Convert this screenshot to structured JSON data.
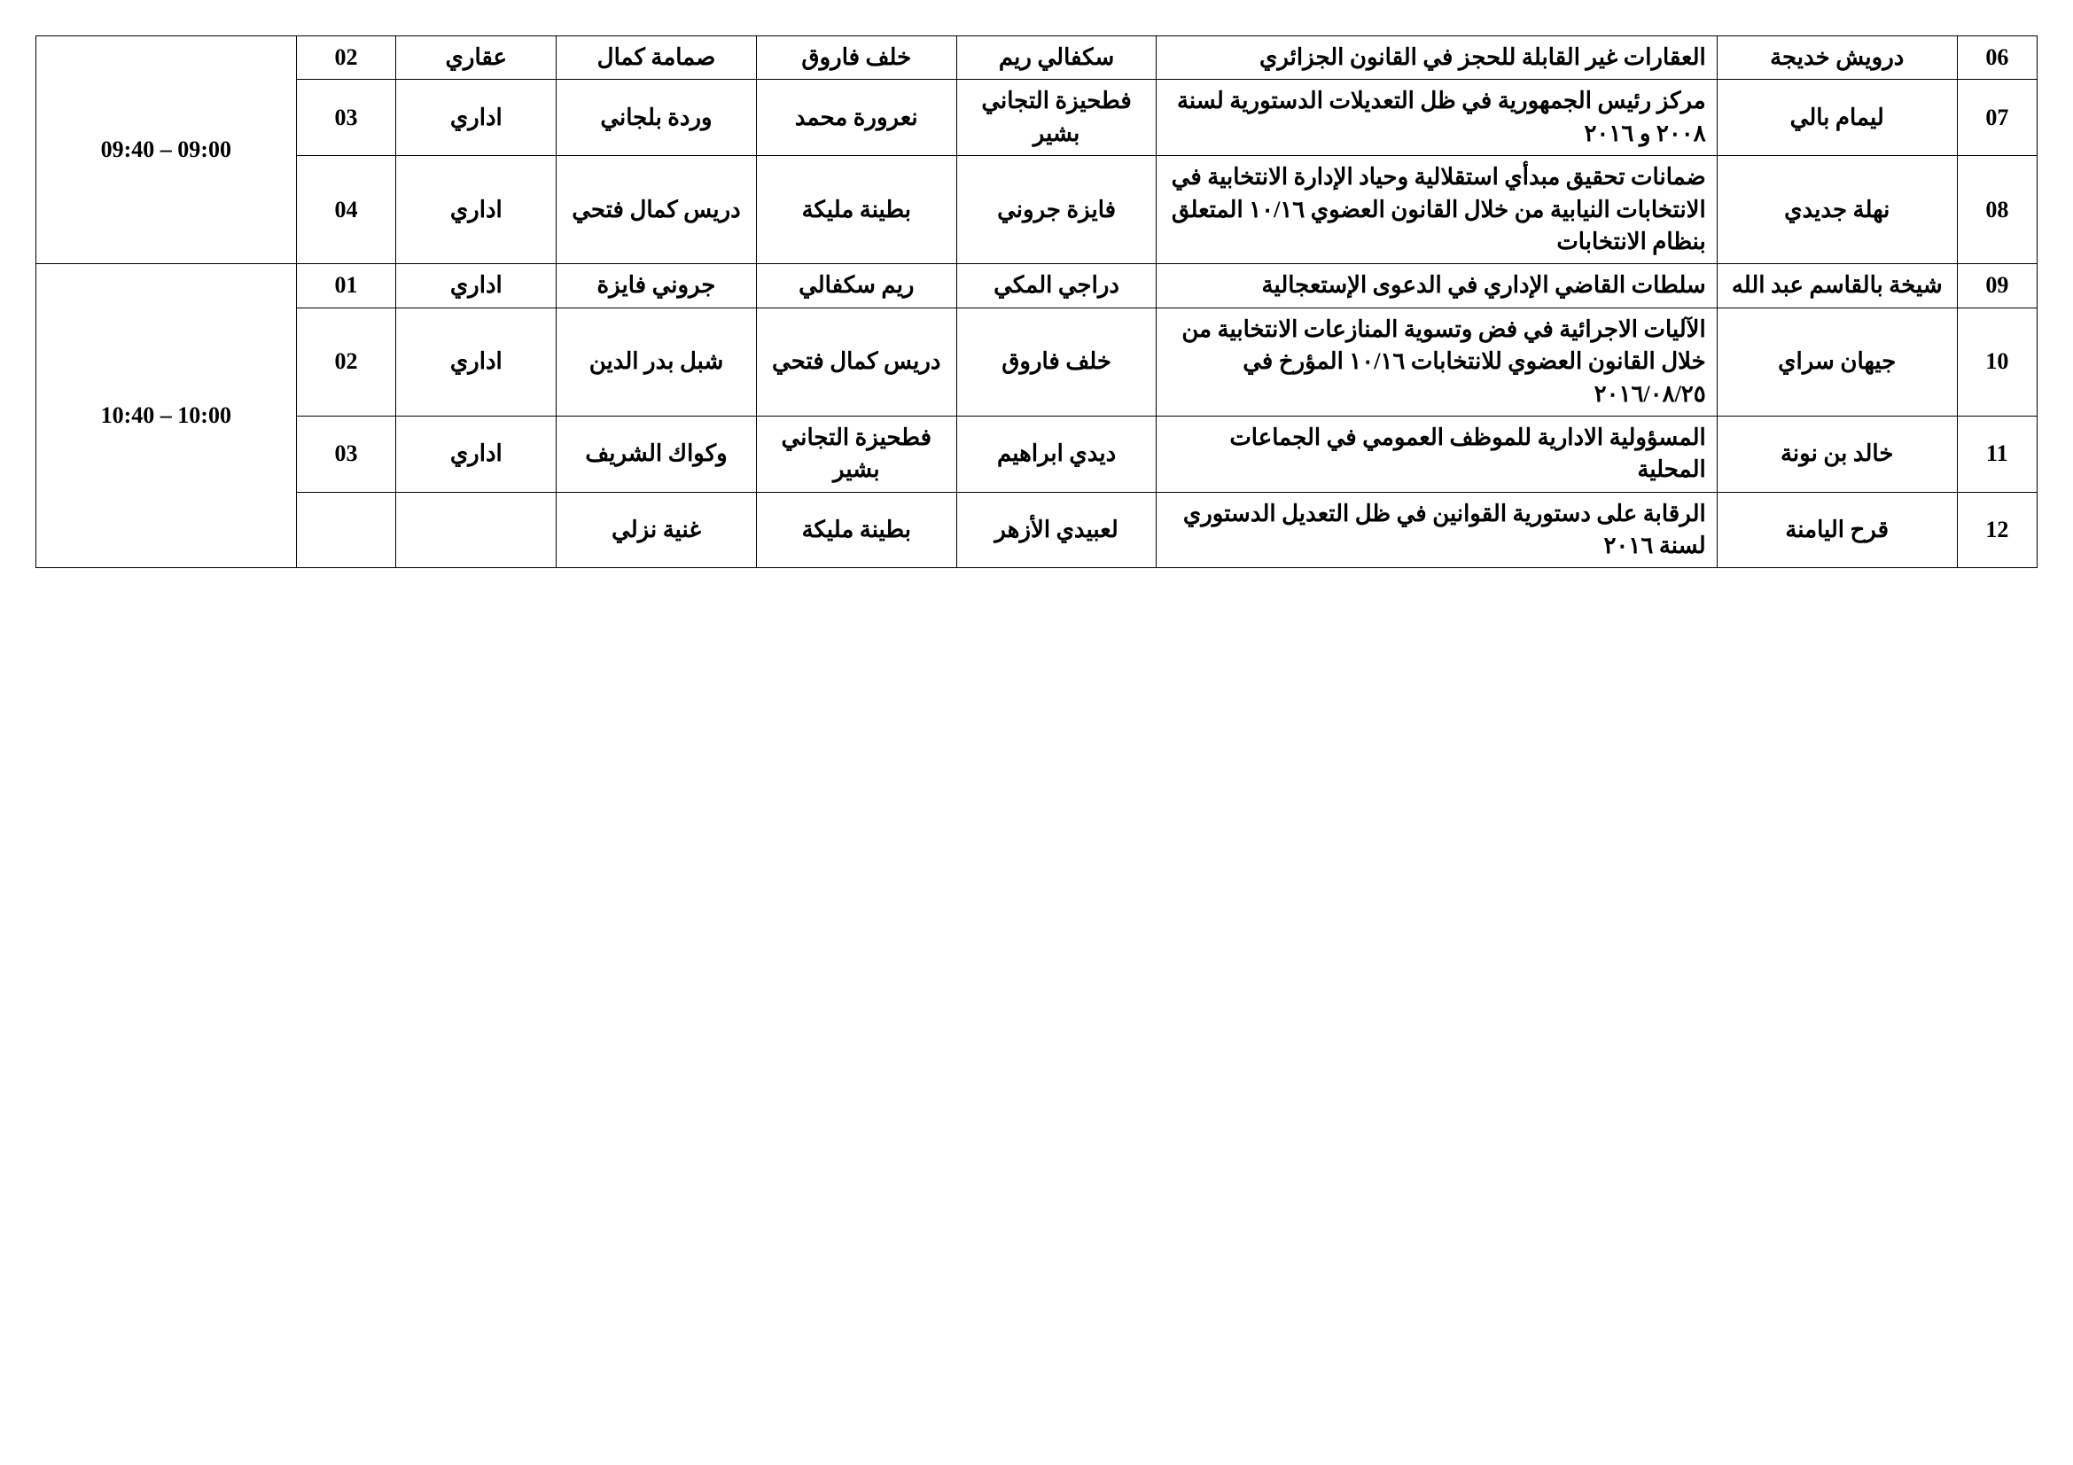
{
  "table": {
    "border_color": "#000000",
    "background_color": "#ffffff",
    "text_color": "#000000",
    "font_size": 26,
    "font_weight": "bold",
    "columns": [
      "num",
      "name",
      "topic",
      "person1",
      "person2",
      "person3",
      "type",
      "code",
      "time"
    ],
    "time_slots": [
      {
        "time": "09:00 – 09:40",
        "rowspan": 3
      },
      {
        "time": "10:00 – 10:40",
        "rowspan": 4
      }
    ],
    "rows": [
      {
        "num": "06",
        "name": "درويش خديجة",
        "topic": "العقارات غير القابلة للحجز في القانون الجزائري",
        "p1": "سكفالي ريم",
        "p2": "خلف فاروق",
        "p3": "صمامة كمال",
        "type": "عقاري",
        "code": "02",
        "time_slot": 0,
        "show_time": true
      },
      {
        "num": "07",
        "name": "ليمام بالي",
        "topic": "مركز رئيس الجمهورية في ظل التعديلات الدستورية لسنة ٢٠٠٨ و ٢٠١٦",
        "p1": "فطحيزة التجاني بشير",
        "p2": "نعرورة محمد",
        "p3": "وردة بلجاني",
        "type": "اداري",
        "code": "03",
        "time_slot": 0,
        "show_time": false
      },
      {
        "num": "08",
        "name": "نهلة جديدي",
        "topic": "ضمانات تحقيق مبدأي استقلالية وحياد الإدارة الانتخابية في الانتخابات النيابية من خلال القانون العضوي ١٠/١٦ المتعلق بنظام الانتخابات",
        "p1": "فايزة جروني",
        "p2": "بطينة مليكة",
        "p3": "دريس كمال فتحي",
        "type": "اداري",
        "code": "04",
        "time_slot": 0,
        "show_time": false
      },
      {
        "num": "09",
        "name": "شيخة بالقاسم عبد الله",
        "topic": "سلطات القاضي الإداري في الدعوى الإستعجالية",
        "p1": "دراجي المكي",
        "p2": "ريم سكفالي",
        "p3": "جروني فايزة",
        "type": "اداري",
        "code": "01",
        "time_slot": 1,
        "show_time": true
      },
      {
        "num": "10",
        "name": "جيهان سراي",
        "topic": "الآليات الاجرائية في فض وتسوية المنازعات الانتخابية من خلال القانون العضوي للانتخابات ١٠/١٦ المؤرخ في ٢٠١٦/٠٨/٢٥",
        "p1": "خلف فاروق",
        "p2": "دريس كمال فتحي",
        "p3": "شبل بدر الدين",
        "type": "اداري",
        "code": "02",
        "time_slot": 1,
        "show_time": false
      },
      {
        "num": "11",
        "name": "خالد بن نونة",
        "topic": "المسؤولية الادارية للموظف العمومي في الجماعات المحلية",
        "p1": "ديدي ابراهيم",
        "p2": "فطحيزة التجاني بشير",
        "p3": "وكواك الشريف",
        "type": "اداري",
        "code": "03",
        "time_slot": 1,
        "show_time": false
      },
      {
        "num": "12",
        "name": "قرح اليامنة",
        "topic": "الرقابة على دستورية القوانين في ظل التعديل الدستوري لسنة ٢٠١٦",
        "p1": "لعبيدي الأزهر",
        "p2": "بطينة مليكة",
        "p3": "غنية نزلي",
        "type": "",
        "code": "",
        "time_slot": 1,
        "show_time": false
      }
    ]
  }
}
